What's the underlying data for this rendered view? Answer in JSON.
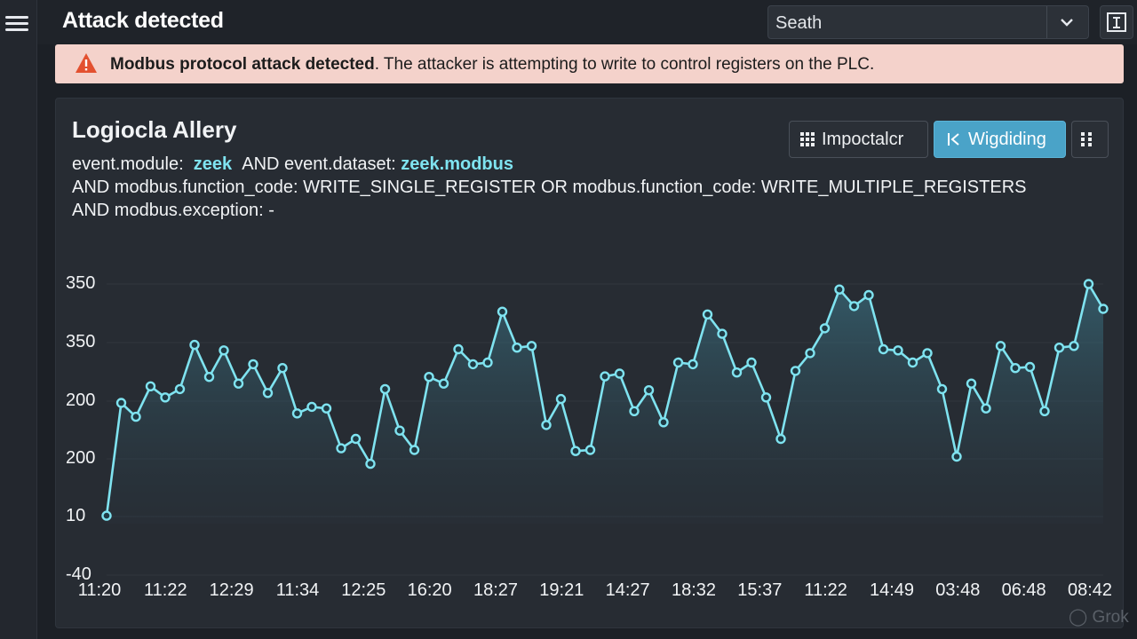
{
  "topbar": {
    "title": "Attack detected",
    "search_value": "Seath"
  },
  "alert": {
    "strong": "Modbus protocol attack detected",
    "rest": ". The attacker is attempting to write to control registers on the PLC."
  },
  "panel": {
    "title": "Logiocla Allery",
    "query": {
      "l1_a": "event.module:",
      "l1_b": "zeek",
      "l1_c": "AND event.dataset:",
      "l1_d": "zeek.modbus",
      "line2": "AND modbus.function_code:  WRITE_SINGLE_REGISTER OR modbus.function_code:  WRITE_MULTIPLE_REGISTERS",
      "line3": "AND modbus.exception: -"
    },
    "buttons": {
      "a": "Impoctalcr",
      "b": "Wigdiding"
    }
  },
  "colors": {
    "accent": "#4aa3c8",
    "line": "#7fe3f0",
    "alert_bg": "#f4d2cb",
    "alert_icon": "#e3502f"
  },
  "watermark": "Grok",
  "chart_data": {
    "type": "area",
    "y_tick_labels": [
      "350",
      "350",
      "200",
      "200",
      "10",
      "-40"
    ],
    "x_tick_labels": [
      "11:20",
      "11:22",
      "12:29",
      "11:34",
      "12:25",
      "16:20",
      "18:27",
      "19:21",
      "14:27",
      "18:32",
      "15:37",
      "11:22",
      "14:49",
      "03:48",
      "06:48",
      "08:42"
    ],
    "grid": true,
    "series": [
      {
        "values": [
          11,
          215,
          190,
          245,
          225,
          240,
          320,
          262,
          310,
          250,
          285,
          233,
          278,
          196,
          208,
          205,
          133,
          150,
          105,
          240,
          165,
          130,
          262,
          250,
          312,
          285,
          288,
          380,
          315,
          318,
          175,
          222,
          128,
          130,
          263,
          268,
          200,
          238,
          180,
          288,
          285,
          375,
          340,
          270,
          288,
          225,
          150,
          273,
          305,
          350,
          420,
          390,
          410,
          312,
          310,
          288,
          305,
          240,
          118,
          250,
          205,
          318,
          278,
          280,
          200,
          315,
          318,
          430,
          385
        ]
      }
    ]
  }
}
